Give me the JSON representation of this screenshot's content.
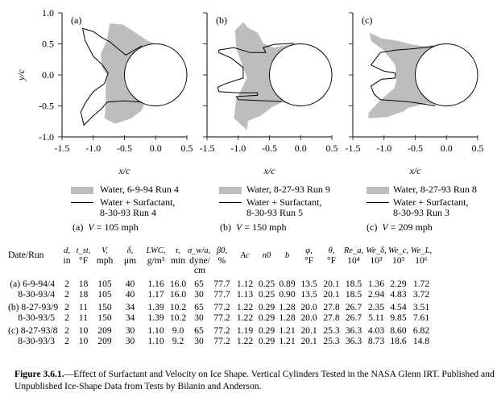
{
  "chart_data": [
    {
      "type": "area",
      "panel": "(a)",
      "xlabel": "x/c",
      "ylabel": "y/c",
      "xlim": [
        -1.5,
        0.5
      ],
      "ylim": [
        -1.0,
        1.0
      ],
      "xticks": [
        "-1.5",
        "-1.0",
        "-0.5",
        "0.0",
        "0.5"
      ],
      "yticks": [
        "1.0",
        "0.5",
        "0.0",
        "-0.5",
        "-1.0"
      ],
      "cylinder": {
        "cx": 0,
        "cy": 0,
        "r": 0.5
      },
      "water": [
        [
          -0.73,
          0.83
        ],
        [
          -0.52,
          0.81
        ],
        [
          -0.35,
          0.7
        ],
        [
          -0.13,
          0.55
        ],
        [
          0,
          0.5
        ],
        [
          0.3,
          0
        ],
        [
          0,
          -0.5
        ],
        [
          -0.17,
          -0.44
        ],
        [
          -0.22,
          -0.57
        ],
        [
          -0.39,
          -0.7
        ],
        [
          -0.65,
          -0.79
        ],
        [
          -0.82,
          -0.7
        ],
        [
          -0.8,
          -0.48
        ],
        [
          -0.8,
          -0.22
        ],
        [
          -0.78,
          0
        ],
        [
          -0.86,
          0.12
        ],
        [
          -0.88,
          0.34
        ],
        [
          -0.78,
          0.55
        ],
        [
          -0.75,
          0.76
        ]
      ],
      "surfactant": [
        [
          -0.22,
          0.47
        ],
        [
          -0.48,
          0.32
        ],
        [
          -0.6,
          0.42
        ],
        [
          -0.73,
          0.53
        ],
        [
          -0.86,
          0.6
        ],
        [
          -1.0,
          0.7
        ],
        [
          -1.17,
          0.75
        ],
        [
          -1.13,
          0.55
        ],
        [
          -1.0,
          0.3
        ],
        [
          -0.86,
          0.17
        ],
        [
          -0.76,
          0.03
        ],
        [
          -0.82,
          -0.14
        ],
        [
          -1.0,
          -0.27
        ],
        [
          -1.12,
          -0.44
        ],
        [
          -1.2,
          -0.6
        ],
        [
          -1.15,
          -0.81
        ],
        [
          -1.0,
          -0.66
        ],
        [
          -0.86,
          -0.54
        ],
        [
          -0.78,
          -0.44
        ],
        [
          -0.52,
          -0.42
        ],
        [
          -0.22,
          -0.44
        ]
      ]
    },
    {
      "type": "area",
      "panel": "(b)",
      "xlabel": "x/c",
      "xlim": [
        -1.5,
        0.5
      ],
      "ylim": [
        -1.0,
        1.0
      ],
      "xticks": [
        "-1.5",
        "-1.0",
        "-0.5",
        "0.0",
        "0.5"
      ],
      "cylinder": {
        "cx": 0,
        "cy": 0,
        "r": 0.5
      },
      "water": [
        [
          -0.92,
          0.85
        ],
        [
          -0.84,
          0.76
        ],
        [
          -0.69,
          0.68
        ],
        [
          -0.6,
          0.51
        ],
        [
          -0.43,
          0.44
        ],
        [
          -0.1,
          0.5
        ],
        [
          0.3,
          0
        ],
        [
          -0.1,
          -0.5
        ],
        [
          -0.3,
          -0.44
        ],
        [
          -0.47,
          -0.53
        ],
        [
          -0.64,
          -0.66
        ],
        [
          -0.84,
          -0.74
        ],
        [
          -0.86,
          -0.89
        ],
        [
          -1.07,
          -0.7
        ],
        [
          -1.03,
          -0.4
        ],
        [
          -0.86,
          -0.05
        ],
        [
          -0.92,
          0.12
        ],
        [
          -1.03,
          0.42
        ],
        [
          -1.05,
          0.72
        ]
      ],
      "surfactant": [
        [
          -0.11,
          0.51
        ],
        [
          -0.43,
          0.49
        ],
        [
          -0.6,
          0.44
        ],
        [
          -0.56,
          0.36
        ],
        [
          -0.81,
          0.36
        ],
        [
          -1.07,
          0.44
        ],
        [
          -1.31,
          0.4
        ],
        [
          -1.31,
          0.36
        ],
        [
          -1.11,
          0.27
        ],
        [
          -0.92,
          0.12
        ],
        [
          -0.92,
          -0.05
        ],
        [
          -1.2,
          -0.14
        ],
        [
          -1.33,
          -0.2
        ],
        [
          -1.31,
          -0.27
        ],
        [
          -1.03,
          -0.29
        ],
        [
          -0.69,
          -0.29
        ],
        [
          -0.69,
          -0.33
        ],
        [
          -1.03,
          -0.35
        ],
        [
          -1.0,
          -0.4
        ],
        [
          -0.56,
          -0.42
        ],
        [
          -0.3,
          -0.43
        ]
      ]
    },
    {
      "type": "area",
      "panel": "(c)",
      "xlabel": "x/c",
      "xlim": [
        -1.5,
        0.5
      ],
      "ylim": [
        -1.0,
        1.0
      ],
      "xticks": [
        "-1.5",
        "-1.0",
        "-0.5",
        "0.0",
        "0.5"
      ],
      "cylinder": {
        "cx": 0,
        "cy": 0,
        "r": 0.5
      },
      "water": [
        [
          -1.23,
          0.68
        ],
        [
          -1.04,
          0.59
        ],
        [
          -0.78,
          0.55
        ],
        [
          -0.56,
          0.49
        ],
        [
          -0.35,
          0.46
        ],
        [
          -0.1,
          0.5
        ],
        [
          0.3,
          0
        ],
        [
          -0.1,
          -0.5
        ],
        [
          -0.31,
          -0.46
        ],
        [
          -0.61,
          -0.53
        ],
        [
          -0.69,
          -0.59
        ],
        [
          -0.95,
          -0.68
        ],
        [
          -1.25,
          -0.7
        ],
        [
          -1.25,
          -0.61
        ],
        [
          -1.07,
          -0.42
        ],
        [
          -0.84,
          -0.22
        ],
        [
          -0.8,
          -0.1
        ],
        [
          -0.82,
          0.16
        ],
        [
          -1.01,
          0.4
        ],
        [
          -1.21,
          0.55
        ]
      ],
      "surfactant": [
        [
          -0.2,
          0.46
        ],
        [
          -0.56,
          0.42
        ],
        [
          -0.82,
          0.4
        ],
        [
          -1.06,
          0.36
        ],
        [
          -1.21,
          0.16
        ],
        [
          -1.0,
          0.06
        ],
        [
          -0.82,
          0.03
        ],
        [
          -0.82,
          -0.05
        ],
        [
          -1.04,
          -0.07
        ],
        [
          -1.21,
          -0.18
        ],
        [
          -1.16,
          -0.31
        ],
        [
          -1.06,
          -0.4
        ],
        [
          -0.65,
          -0.43
        ],
        [
          -0.43,
          -0.46
        ],
        [
          -0.18,
          -0.5
        ]
      ]
    }
  ],
  "legends": [
    {
      "water": "Water, 6-9-94 Run 4",
      "surf1": "Water + Surfactant,",
      "surf2": "8-30-93 Run 4",
      "caption_pre": "(a)  ",
      "caption_v": "V",
      "caption_post": " = 105 mph"
    },
    {
      "water": "Water, 8-27-93 Run 9",
      "surf1": "Water + Surfactant,",
      "surf2": "8-30-93 Run 5",
      "caption_pre": "(b)  ",
      "caption_v": "V",
      "caption_post": " = 150 mph"
    },
    {
      "water": "Water, 8-27-93 Run 8",
      "surf1": "Water + Surfactant,",
      "surf2": "8-30-93 Run 3",
      "caption_pre": "(c)  ",
      "caption_v": "V",
      "caption_post": " = 209 mph"
    }
  ],
  "colors": {
    "water_fill": "#bdbdbd",
    "outline": "#000000",
    "axis": "#333333"
  },
  "table": {
    "headers": [
      {
        "sym": "",
        "unit": "Date/Run"
      },
      {
        "sym": "d,",
        "unit": "in"
      },
      {
        "sym": "t_st,",
        "unit": "°F"
      },
      {
        "sym": "V,",
        "unit": "mph"
      },
      {
        "sym": "δ,",
        "unit": "μm"
      },
      {
        "sym": "LWC,",
        "unit": "g/m³"
      },
      {
        "sym": "τ,",
        "unit": "min"
      },
      {
        "sym": "σ_w/a,",
        "unit": "dyne/ cm"
      },
      {
        "sym": "β0,",
        "unit": "%"
      },
      {
        "sym": "Ac",
        "unit": ""
      },
      {
        "sym": "n0",
        "unit": ""
      },
      {
        "sym": "b",
        "unit": ""
      },
      {
        "sym": "φ,",
        "unit": "°F"
      },
      {
        "sym": "θ,",
        "unit": "°F"
      },
      {
        "sym": "Re_a,",
        "unit": "10⁴"
      },
      {
        "sym": "We_δ,",
        "unit": "10³"
      },
      {
        "sym": "We_c,",
        "unit": "10³"
      },
      {
        "sym": "We_L,",
        "unit": "10⁶"
      }
    ],
    "rows": [
      [
        "(a) 6-9-94/4",
        "2",
        "18",
        "105",
        "40",
        "1.16",
        "16.0",
        "65",
        "77.7",
        "1.12",
        "0.25",
        "0.89",
        "13.5",
        "20.1",
        "18.5",
        "1.36",
        "2.29",
        "1.72"
      ],
      [
        "8-30-93/4",
        "2",
        "18",
        "105",
        "40",
        "1.17",
        "16.0",
        "30",
        "77.7",
        "1.13",
        "0.25",
        "0.90",
        "13.5",
        "20.1",
        "18.5",
        "2.94",
        "4.83",
        "3.72"
      ],
      [
        "(b) 8-27-93/9",
        "2",
        "11",
        "150",
        "34",
        "1.39",
        "10.2",
        "65",
        "77.2",
        "1.22",
        "0.29",
        "1.28",
        "20.0",
        "27.8",
        "26.7",
        "2.35",
        "4.54",
        "3.51"
      ],
      [
        "8-30-93/5",
        "2",
        "11",
        "150",
        "34",
        "1.39",
        "10.2",
        "30",
        "77.2",
        "1.22",
        "0.29",
        "1.28",
        "20.0",
        "27.8",
        "26.7",
        "5.11",
        "9.85",
        "7.61"
      ],
      [
        "(c) 8-27-93/8",
        "2",
        "10",
        "209",
        "30",
        "1.10",
        "9.0",
        "65",
        "77.2",
        "1.19",
        "0.29",
        "1.21",
        "20.1",
        "25.3",
        "36.3",
        "4.03",
        "8.60",
        "6.82"
      ],
      [
        "8-30-93/3",
        "2",
        "10",
        "209",
        "30",
        "1.10",
        "9.2",
        "30",
        "77.2",
        "1.22",
        "0.29",
        "1.21",
        "20.1",
        "25.3",
        "36.3",
        "8.73",
        "18.6",
        "14.8"
      ]
    ]
  },
  "caption": {
    "label": "Figure 3.6.1.",
    "text": "—Effect of Surfactant and Velocity on Ice Shape.  Vertical Cylinders Tested in the NASA Glenn IRT. Published and Unpublished Ice-Shape Data from Tests by Bilanin and Anderson."
  }
}
